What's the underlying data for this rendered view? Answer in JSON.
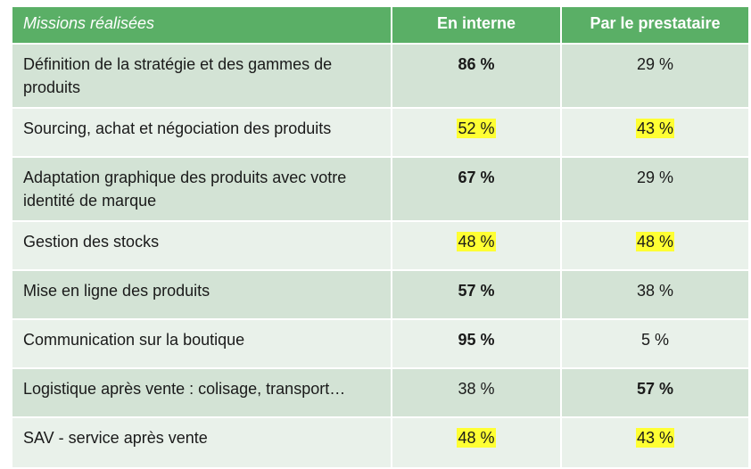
{
  "table": {
    "headers": [
      "Missions réalisées",
      "En interne",
      "Par le prestataire"
    ],
    "rows": [
      {
        "label": "Définition de la stratégie et des gammes de produits",
        "interne": "86 %",
        "prestataire": "29 %",
        "interne_bold": true,
        "prestataire_bold": false,
        "interne_highlight": false,
        "prestataire_highlight": false
      },
      {
        "label": "Sourcing, achat et négociation des produits",
        "interne": "52 %",
        "prestataire": "43 %",
        "interne_bold": false,
        "prestataire_bold": false,
        "interne_highlight": true,
        "prestataire_highlight": true
      },
      {
        "label": "Adaptation graphique des produits avec votre identité de marque",
        "interne": "67 %",
        "prestataire": "29 %",
        "interne_bold": true,
        "prestataire_bold": false,
        "interne_highlight": false,
        "prestataire_highlight": false
      },
      {
        "label": "Gestion des stocks",
        "interne": "48 %",
        "prestataire": "48 %",
        "interne_bold": false,
        "prestataire_bold": false,
        "interne_highlight": true,
        "prestataire_highlight": true
      },
      {
        "label": "Mise en ligne des produits",
        "interne": "57 %",
        "prestataire": "38 %",
        "interne_bold": true,
        "prestataire_bold": false,
        "interne_highlight": false,
        "prestataire_highlight": false
      },
      {
        "label": "Communication sur la boutique",
        "interne": "95 %",
        "prestataire": "5 %",
        "interne_bold": true,
        "prestataire_bold": false,
        "interne_highlight": false,
        "prestataire_highlight": false
      },
      {
        "label": "Logistique après vente : colisage, transport…",
        "interne": "38 %",
        "prestataire": "57 %",
        "interne_bold": false,
        "prestataire_bold": true,
        "interne_highlight": false,
        "prestataire_highlight": false
      },
      {
        "label": "SAV - service après vente",
        "interne": "48 %",
        "prestataire": "43 %",
        "interne_bold": false,
        "prestataire_bold": false,
        "interne_highlight": true,
        "prestataire_highlight": true
      }
    ]
  },
  "colors": {
    "header_bg": "#5aaf66",
    "row_dark": "#d3e3d5",
    "row_light": "#e9f1ea",
    "highlight": "#ffff33"
  }
}
